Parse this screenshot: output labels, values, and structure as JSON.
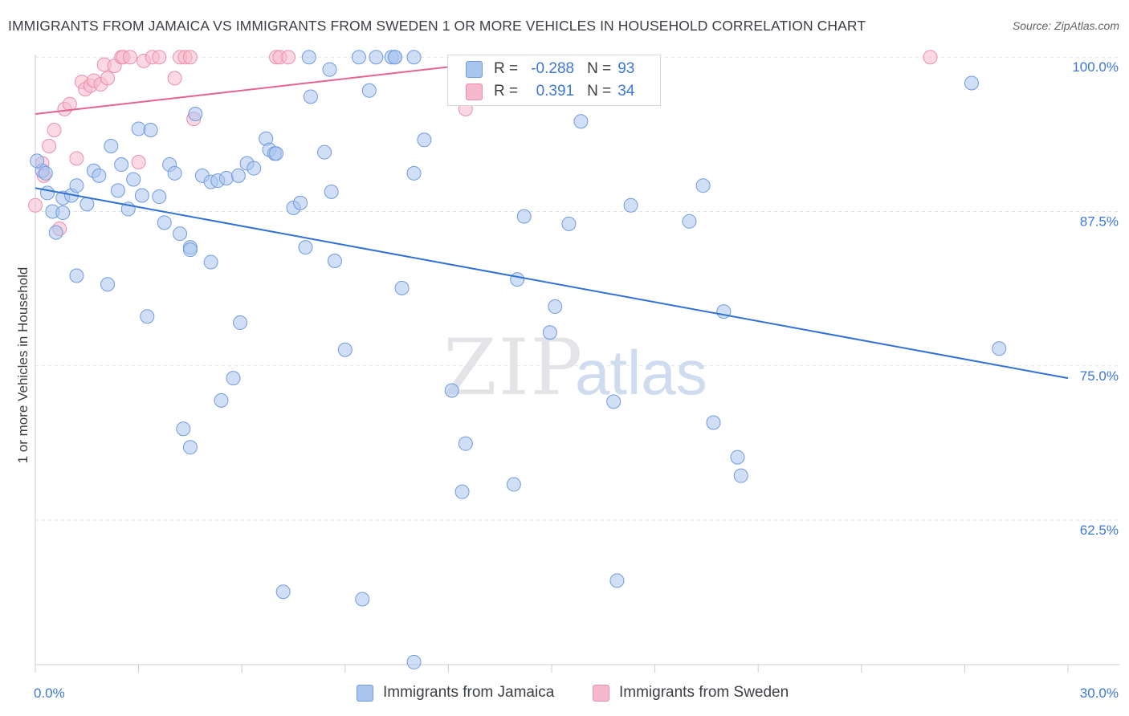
{
  "header": {
    "title": "IMMIGRANTS FROM JAMAICA VS IMMIGRANTS FROM SWEDEN 1 OR MORE VEHICLES IN HOUSEHOLD CORRELATION CHART",
    "source": "Source: ZipAtlas.com"
  },
  "watermark": {
    "zip": "ZIP",
    "atlas": "atlas"
  },
  "legend": {
    "jamaica": {
      "r_label": "R =",
      "r_value": "-0.288",
      "n_label": "N =",
      "n_value": "93"
    },
    "sweden": {
      "r_label": "R =",
      "r_value": "0.391",
      "n_label": "N =",
      "n_value": "34"
    }
  },
  "bottom_legend": {
    "jamaica": "Immigrants from Jamaica",
    "sweden": "Immigrants from Sweden"
  },
  "colors": {
    "jamaica_fill": "#a9c5ee",
    "jamaica_stroke": "#6f9be0",
    "jamaica_line": "#2f72d4",
    "sweden_fill": "#f6b9cc",
    "sweden_stroke": "#ec8fae",
    "sweden_line": "#e4648d",
    "tick_text": "#3c78d8"
  },
  "chart_data": {
    "type": "scatter",
    "title": "IMMIGRANTS FROM JAMAICA VS IMMIGRANTS FROM SWEDEN 1 OR MORE VEHICLES IN HOUSEHOLD CORRELATION CHART",
    "xlabel": "",
    "ylabel": "1 or more Vehicles in Household",
    "xlim": [
      0,
      30
    ],
    "ylim": [
      50.8,
      100.6
    ],
    "x_tick_labels": [
      "0.0%",
      "30.0%"
    ],
    "y_ticks": [
      {
        "value": 100.0,
        "label": "100.0%"
      },
      {
        "value": 87.5,
        "label": "87.5%"
      },
      {
        "value": 75.0,
        "label": "75.0%"
      },
      {
        "value": 62.5,
        "label": "62.5%"
      }
    ],
    "grid": "horizontal dashed",
    "legend_position": "top-center",
    "series": [
      {
        "name": "Immigrants from Jamaica",
        "r": -0.288,
        "n": 93,
        "trend": {
          "x": [
            0,
            30
          ],
          "y": [
            89.4,
            74.0
          ]
        },
        "points": [
          [
            0.2,
            90.8
          ],
          [
            0.35,
            89.0
          ],
          [
            0.5,
            87.5
          ],
          [
            0.6,
            85.8
          ],
          [
            0.8,
            87.4
          ],
          [
            0.8,
            88.6
          ],
          [
            1.05,
            88.8
          ],
          [
            1.2,
            89.6
          ],
          [
            1.5,
            88.1
          ],
          [
            1.7,
            90.8
          ],
          [
            1.85,
            90.4
          ],
          [
            2.2,
            92.8
          ],
          [
            2.4,
            89.2
          ],
          [
            2.5,
            91.3
          ],
          [
            2.7,
            87.7
          ],
          [
            2.85,
            90.1
          ],
          [
            3.0,
            94.2
          ],
          [
            3.1,
            88.8
          ],
          [
            3.35,
            94.1
          ],
          [
            3.6,
            88.7
          ],
          [
            3.75,
            86.6
          ],
          [
            3.9,
            91.3
          ],
          [
            4.05,
            90.6
          ],
          [
            4.2,
            85.7
          ],
          [
            4.5,
            84.6
          ],
          [
            4.65,
            95.4
          ],
          [
            4.85,
            90.4
          ],
          [
            5.1,
            89.9
          ],
          [
            5.3,
            90.0
          ],
          [
            5.55,
            90.2
          ],
          [
            5.9,
            90.4
          ],
          [
            6.15,
            91.4
          ],
          [
            6.35,
            91.0
          ],
          [
            6.7,
            93.4
          ],
          [
            6.8,
            92.5
          ],
          [
            6.95,
            92.2
          ],
          [
            7.0,
            92.2
          ],
          [
            7.5,
            87.8
          ],
          [
            7.7,
            88.2
          ],
          [
            7.85,
            84.6
          ],
          [
            7.95,
            100.0
          ],
          [
            8.0,
            96.8
          ],
          [
            8.4,
            92.3
          ],
          [
            8.55,
            99.0
          ],
          [
            8.6,
            89.1
          ],
          [
            8.7,
            83.5
          ],
          [
            9.0,
            76.3
          ],
          [
            9.4,
            100.0
          ],
          [
            9.7,
            97.3
          ],
          [
            9.9,
            100.0
          ],
          [
            10.35,
            100.0
          ],
          [
            10.45,
            100.0
          ],
          [
            10.45,
            100.0
          ],
          [
            10.65,
            81.3
          ],
          [
            11.0,
            90.6
          ],
          [
            11.3,
            93.3
          ],
          [
            12.1,
            73.0
          ],
          [
            12.5,
            68.7
          ],
          [
            12.4,
            64.8
          ],
          [
            13.9,
            65.4
          ],
          [
            14.0,
            82.0
          ],
          [
            14.2,
            87.1
          ],
          [
            14.95,
            77.7
          ],
          [
            15.1,
            79.8
          ],
          [
            15.5,
            86.5
          ],
          [
            15.85,
            94.8
          ],
          [
            16.8,
            72.1
          ],
          [
            16.9,
            57.6
          ],
          [
            17.3,
            88.0
          ],
          [
            19.0,
            86.7
          ],
          [
            19.4,
            89.6
          ],
          [
            19.7,
            70.4
          ],
          [
            20.0,
            79.4
          ],
          [
            20.4,
            67.6
          ],
          [
            20.5,
            66.1
          ],
          [
            27.2,
            97.9
          ],
          [
            28.0,
            76.4
          ],
          [
            1.2,
            82.3
          ],
          [
            2.1,
            81.6
          ],
          [
            3.25,
            79.0
          ],
          [
            4.5,
            84.4
          ],
          [
            5.1,
            83.4
          ],
          [
            5.4,
            72.2
          ],
          [
            5.75,
            74.0
          ],
          [
            5.95,
            78.5
          ],
          [
            4.3,
            69.9
          ],
          [
            4.5,
            68.4
          ],
          [
            7.2,
            56.7
          ],
          [
            9.5,
            56.1
          ],
          [
            11.0,
            51.0
          ],
          [
            0.05,
            91.6
          ],
          [
            0.3,
            90.6
          ],
          [
            11.0,
            100.0
          ]
        ]
      },
      {
        "name": "Immigrants from Sweden",
        "r": 0.391,
        "n": 34,
        "trend": {
          "x": [
            0,
            14.5
          ],
          "y": [
            95.4,
            100.0
          ]
        },
        "points": [
          [
            0.0,
            88.0
          ],
          [
            0.25,
            90.4
          ],
          [
            0.4,
            92.8
          ],
          [
            0.55,
            94.1
          ],
          [
            0.7,
            86.1
          ],
          [
            0.85,
            95.8
          ],
          [
            1.0,
            96.2
          ],
          [
            1.2,
            91.8
          ],
          [
            1.35,
            98.0
          ],
          [
            1.45,
            97.4
          ],
          [
            1.6,
            97.7
          ],
          [
            1.7,
            98.1
          ],
          [
            1.9,
            97.8
          ],
          [
            2.0,
            99.4
          ],
          [
            2.1,
            98.3
          ],
          [
            2.3,
            99.3
          ],
          [
            2.5,
            100.0
          ],
          [
            2.55,
            100.0
          ],
          [
            2.75,
            100.0
          ],
          [
            3.0,
            91.5
          ],
          [
            3.15,
            99.7
          ],
          [
            3.4,
            100.0
          ],
          [
            3.6,
            100.0
          ],
          [
            4.05,
            98.3
          ],
          [
            4.2,
            100.0
          ],
          [
            4.35,
            100.0
          ],
          [
            4.5,
            100.0
          ],
          [
            4.6,
            95.0
          ],
          [
            7.0,
            100.0
          ],
          [
            7.1,
            100.0
          ],
          [
            7.35,
            100.0
          ],
          [
            12.5,
            95.8
          ],
          [
            26.0,
            100.0
          ],
          [
            0.2,
            91.4
          ]
        ]
      }
    ]
  }
}
